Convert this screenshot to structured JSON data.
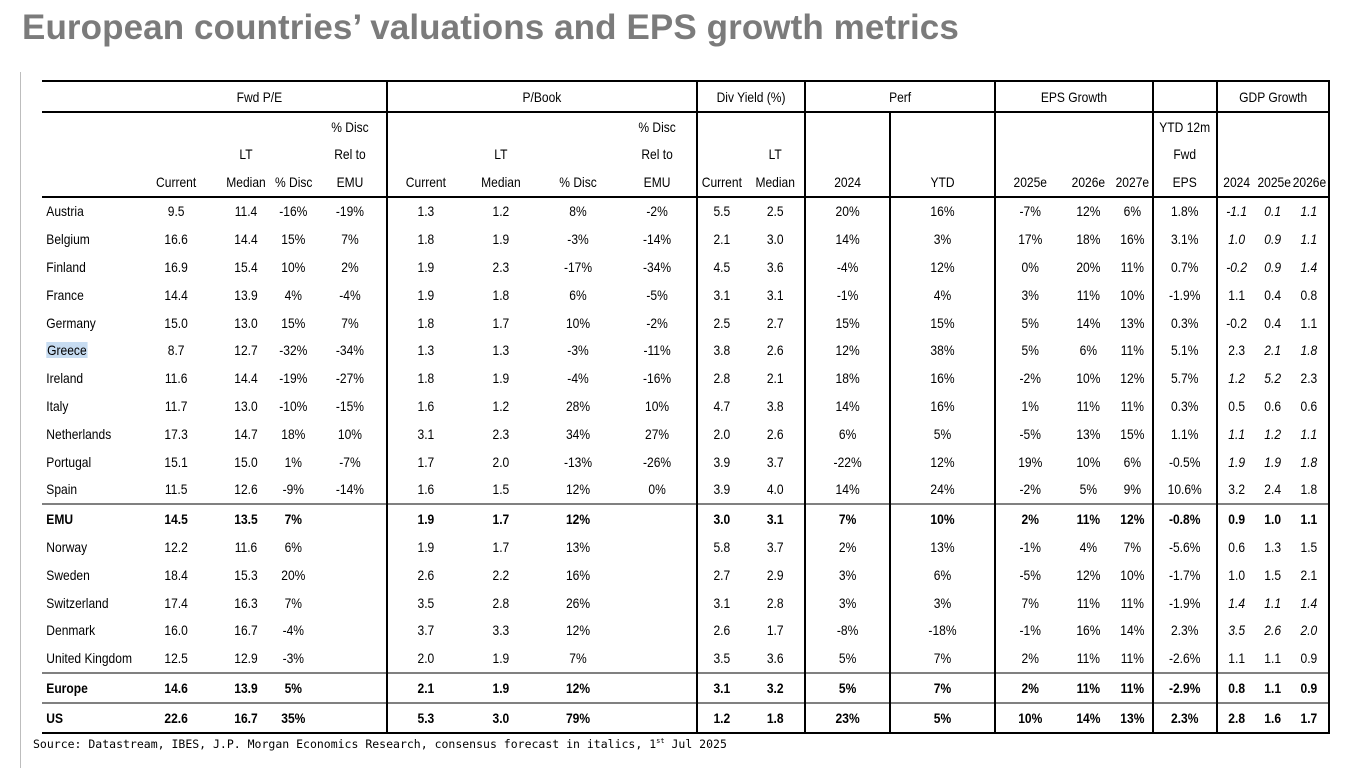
{
  "title": "European countries’ valuations and EPS growth metrics",
  "groups": [
    "Fwd P/E",
    "P/Book",
    "Div Yield (%)",
    "Perf",
    "EPS Growth",
    "GDP Growth"
  ],
  "header_rows": {
    "row1": {
      "pe_disc_emu": "% Disc",
      "pb_disc_emu": "% Disc",
      "ytd12m": "YTD 12m"
    },
    "row2": {
      "pe_lt": "LT",
      "pe_disc_emu": "Rel to",
      "pb_lt": "LT",
      "pb_disc_emu": "Rel to",
      "div_lt": "LT",
      "ytd12m": "Fwd"
    },
    "row3": [
      "Current",
      "Median",
      "% Disc",
      "EMU",
      "Current",
      "Median",
      "% Disc",
      "EMU",
      "Current",
      "Median",
      "2024",
      "YTD",
      "2025e",
      "2026e",
      "2027e",
      "EPS",
      "2024",
      "2025e",
      "2026e"
    ]
  },
  "rows": [
    {
      "name": "Austria",
      "bold": false,
      "vals": [
        "9.5",
        "11.4",
        "-16%",
        "-19%",
        "1.3",
        "1.2",
        "8%",
        "-2%",
        "5.5",
        "2.5",
        "20%",
        "16%",
        "-7%",
        "12%",
        "6%",
        "1.8%",
        "-1.1",
        "0.1",
        "1.1"
      ],
      "gdp_italic": [
        true,
        true,
        true
      ]
    },
    {
      "name": "Belgium",
      "bold": false,
      "vals": [
        "16.6",
        "14.4",
        "15%",
        "7%",
        "1.8",
        "1.9",
        "-3%",
        "-14%",
        "2.1",
        "3.0",
        "14%",
        "3%",
        "17%",
        "18%",
        "16%",
        "3.1%",
        "1.0",
        "0.9",
        "1.1"
      ],
      "gdp_italic": [
        true,
        true,
        true
      ]
    },
    {
      "name": "Finland",
      "bold": false,
      "vals": [
        "16.9",
        "15.4",
        "10%",
        "2%",
        "1.9",
        "2.3",
        "-17%",
        "-34%",
        "4.5",
        "3.6",
        "-4%",
        "12%",
        "0%",
        "20%",
        "11%",
        "0.7%",
        "-0.2",
        "0.9",
        "1.4"
      ],
      "gdp_italic": [
        true,
        true,
        true
      ]
    },
    {
      "name": "France",
      "bold": false,
      "vals": [
        "14.4",
        "13.9",
        "4%",
        "-4%",
        "1.9",
        "1.8",
        "6%",
        "-5%",
        "3.1",
        "3.1",
        "-1%",
        "4%",
        "3%",
        "11%",
        "10%",
        "-1.9%",
        "1.1",
        "0.4",
        "0.8"
      ],
      "gdp_italic": [
        false,
        false,
        false
      ]
    },
    {
      "name": "Germany",
      "bold": false,
      "vals": [
        "15.0",
        "13.0",
        "15%",
        "7%",
        "1.8",
        "1.7",
        "10%",
        "-2%",
        "2.5",
        "2.7",
        "15%",
        "15%",
        "5%",
        "14%",
        "13%",
        "0.3%",
        "-0.2",
        "0.4",
        "1.1"
      ],
      "gdp_italic": [
        false,
        false,
        false
      ]
    },
    {
      "name": "Greece",
      "bold": false,
      "vals": [
        "8.7",
        "12.7",
        "-32%",
        "-34%",
        "1.3",
        "1.3",
        "-3%",
        "-11%",
        "3.8",
        "2.6",
        "12%",
        "38%",
        "5%",
        "6%",
        "11%",
        "5.1%",
        "2.3",
        "2.1",
        "1.8"
      ],
      "gdp_italic": [
        false,
        true,
        true
      ]
    },
    {
      "name": "Ireland",
      "bold": false,
      "vals": [
        "11.6",
        "14.4",
        "-19%",
        "-27%",
        "1.8",
        "1.9",
        "-4%",
        "-16%",
        "2.8",
        "2.1",
        "18%",
        "16%",
        "-2%",
        "10%",
        "12%",
        "5.7%",
        "1.2",
        "5.2",
        "2.3"
      ],
      "gdp_italic": [
        true,
        true,
        false
      ]
    },
    {
      "name": "Italy",
      "bold": false,
      "vals": [
        "11.7",
        "13.0",
        "-10%",
        "-15%",
        "1.6",
        "1.2",
        "28%",
        "10%",
        "4.7",
        "3.8",
        "14%",
        "16%",
        "1%",
        "11%",
        "11%",
        "0.3%",
        "0.5",
        "0.6",
        "0.6"
      ],
      "gdp_italic": [
        false,
        false,
        false
      ]
    },
    {
      "name": "Netherlands",
      "bold": false,
      "vals": [
        "17.3",
        "14.7",
        "18%",
        "10%",
        "3.1",
        "2.3",
        "34%",
        "27%",
        "2.0",
        "2.6",
        "6%",
        "5%",
        "-5%",
        "13%",
        "15%",
        "1.1%",
        "1.1",
        "1.2",
        "1.1"
      ],
      "gdp_italic": [
        true,
        true,
        true
      ]
    },
    {
      "name": "Portugal",
      "bold": false,
      "vals": [
        "15.1",
        "15.0",
        "1%",
        "-7%",
        "1.7",
        "2.0",
        "-13%",
        "-26%",
        "3.9",
        "3.7",
        "-22%",
        "12%",
        "19%",
        "10%",
        "6%",
        "-0.5%",
        "1.9",
        "1.9",
        "1.8"
      ],
      "gdp_italic": [
        true,
        true,
        true
      ]
    },
    {
      "name": "Spain",
      "bold": false,
      "vals": [
        "11.5",
        "12.6",
        "-9%",
        "-14%",
        "1.6",
        "1.5",
        "12%",
        "0%",
        "3.9",
        "4.0",
        "14%",
        "24%",
        "-2%",
        "5%",
        "9%",
        "10.6%",
        "3.2",
        "2.4",
        "1.8"
      ],
      "gdp_italic": [
        false,
        false,
        false
      ]
    },
    {
      "name": "EMU",
      "bold": true,
      "vals": [
        "14.5",
        "13.5",
        "7%",
        "",
        "1.9",
        "1.7",
        "12%",
        "",
        "3.0",
        "3.1",
        "7%",
        "10%",
        "2%",
        "11%",
        "12%",
        "-0.8%",
        "0.9",
        "1.0",
        "1.1"
      ],
      "gdp_italic": [
        false,
        false,
        false
      ]
    },
    {
      "name": "Norway",
      "bold": false,
      "vals": [
        "12.2",
        "11.6",
        "6%",
        "",
        "1.9",
        "1.7",
        "13%",
        "",
        "5.8",
        "3.7",
        "2%",
        "13%",
        "-1%",
        "4%",
        "7%",
        "-5.6%",
        "0.6",
        "1.3",
        "1.5"
      ],
      "gdp_italic": [
        false,
        false,
        false
      ]
    },
    {
      "name": "Sweden",
      "bold": false,
      "vals": [
        "18.4",
        "15.3",
        "20%",
        "",
        "2.6",
        "2.2",
        "16%",
        "",
        "2.7",
        "2.9",
        "3%",
        "6%",
        "-5%",
        "12%",
        "10%",
        "-1.7%",
        "1.0",
        "1.5",
        "2.1"
      ],
      "gdp_italic": [
        false,
        false,
        false
      ]
    },
    {
      "name": "Switzerland",
      "bold": false,
      "vals": [
        "17.4",
        "16.3",
        "7%",
        "",
        "3.5",
        "2.8",
        "26%",
        "",
        "3.1",
        "2.8",
        "3%",
        "3%",
        "7%",
        "11%",
        "11%",
        "-1.9%",
        "1.4",
        "1.1",
        "1.4"
      ],
      "gdp_italic": [
        true,
        true,
        true
      ]
    },
    {
      "name": "Denmark",
      "bold": false,
      "vals": [
        "16.0",
        "16.7",
        "-4%",
        "",
        "3.7",
        "3.3",
        "12%",
        "",
        "2.6",
        "1.7",
        "-8%",
        "-18%",
        "-1%",
        "16%",
        "14%",
        "2.3%",
        "3.5",
        "2.6",
        "2.0"
      ],
      "gdp_italic": [
        true,
        true,
        true
      ]
    },
    {
      "name": "United Kingdom",
      "bold": false,
      "vals": [
        "12.5",
        "12.9",
        "-3%",
        "",
        "2.0",
        "1.9",
        "7%",
        "",
        "3.5",
        "3.6",
        "5%",
        "7%",
        "2%",
        "11%",
        "11%",
        "-2.6%",
        "1.1",
        "1.1",
        "0.9"
      ],
      "gdp_italic": [
        false,
        false,
        false
      ]
    },
    {
      "name": "Europe",
      "bold": true,
      "vals": [
        "14.6",
        "13.9",
        "5%",
        "",
        "2.1",
        "1.9",
        "12%",
        "",
        "3.1",
        "3.2",
        "5%",
        "7%",
        "2%",
        "11%",
        "11%",
        "-2.9%",
        "0.8",
        "1.1",
        "0.9"
      ],
      "gdp_italic": [
        false,
        false,
        false
      ]
    },
    {
      "name": "US",
      "bold": false,
      "vals": [
        "22.6",
        "16.7",
        "35%",
        "",
        "5.3",
        "3.0",
        "79%",
        "",
        "1.2",
        "1.8",
        "23%",
        "5%",
        "10%",
        "14%",
        "13%",
        "2.3%",
        "2.8",
        "1.6",
        "1.7"
      ],
      "gdp_italic": [
        false,
        false,
        false
      ]
    }
  ],
  "highlighted_row": "Greece",
  "source": {
    "text": "Source: Datastream, IBES, J.P. Morgan Economics Research, consensus forecast in italics, 1",
    "sup": "st",
    "tail": " Jul 2025"
  }
}
